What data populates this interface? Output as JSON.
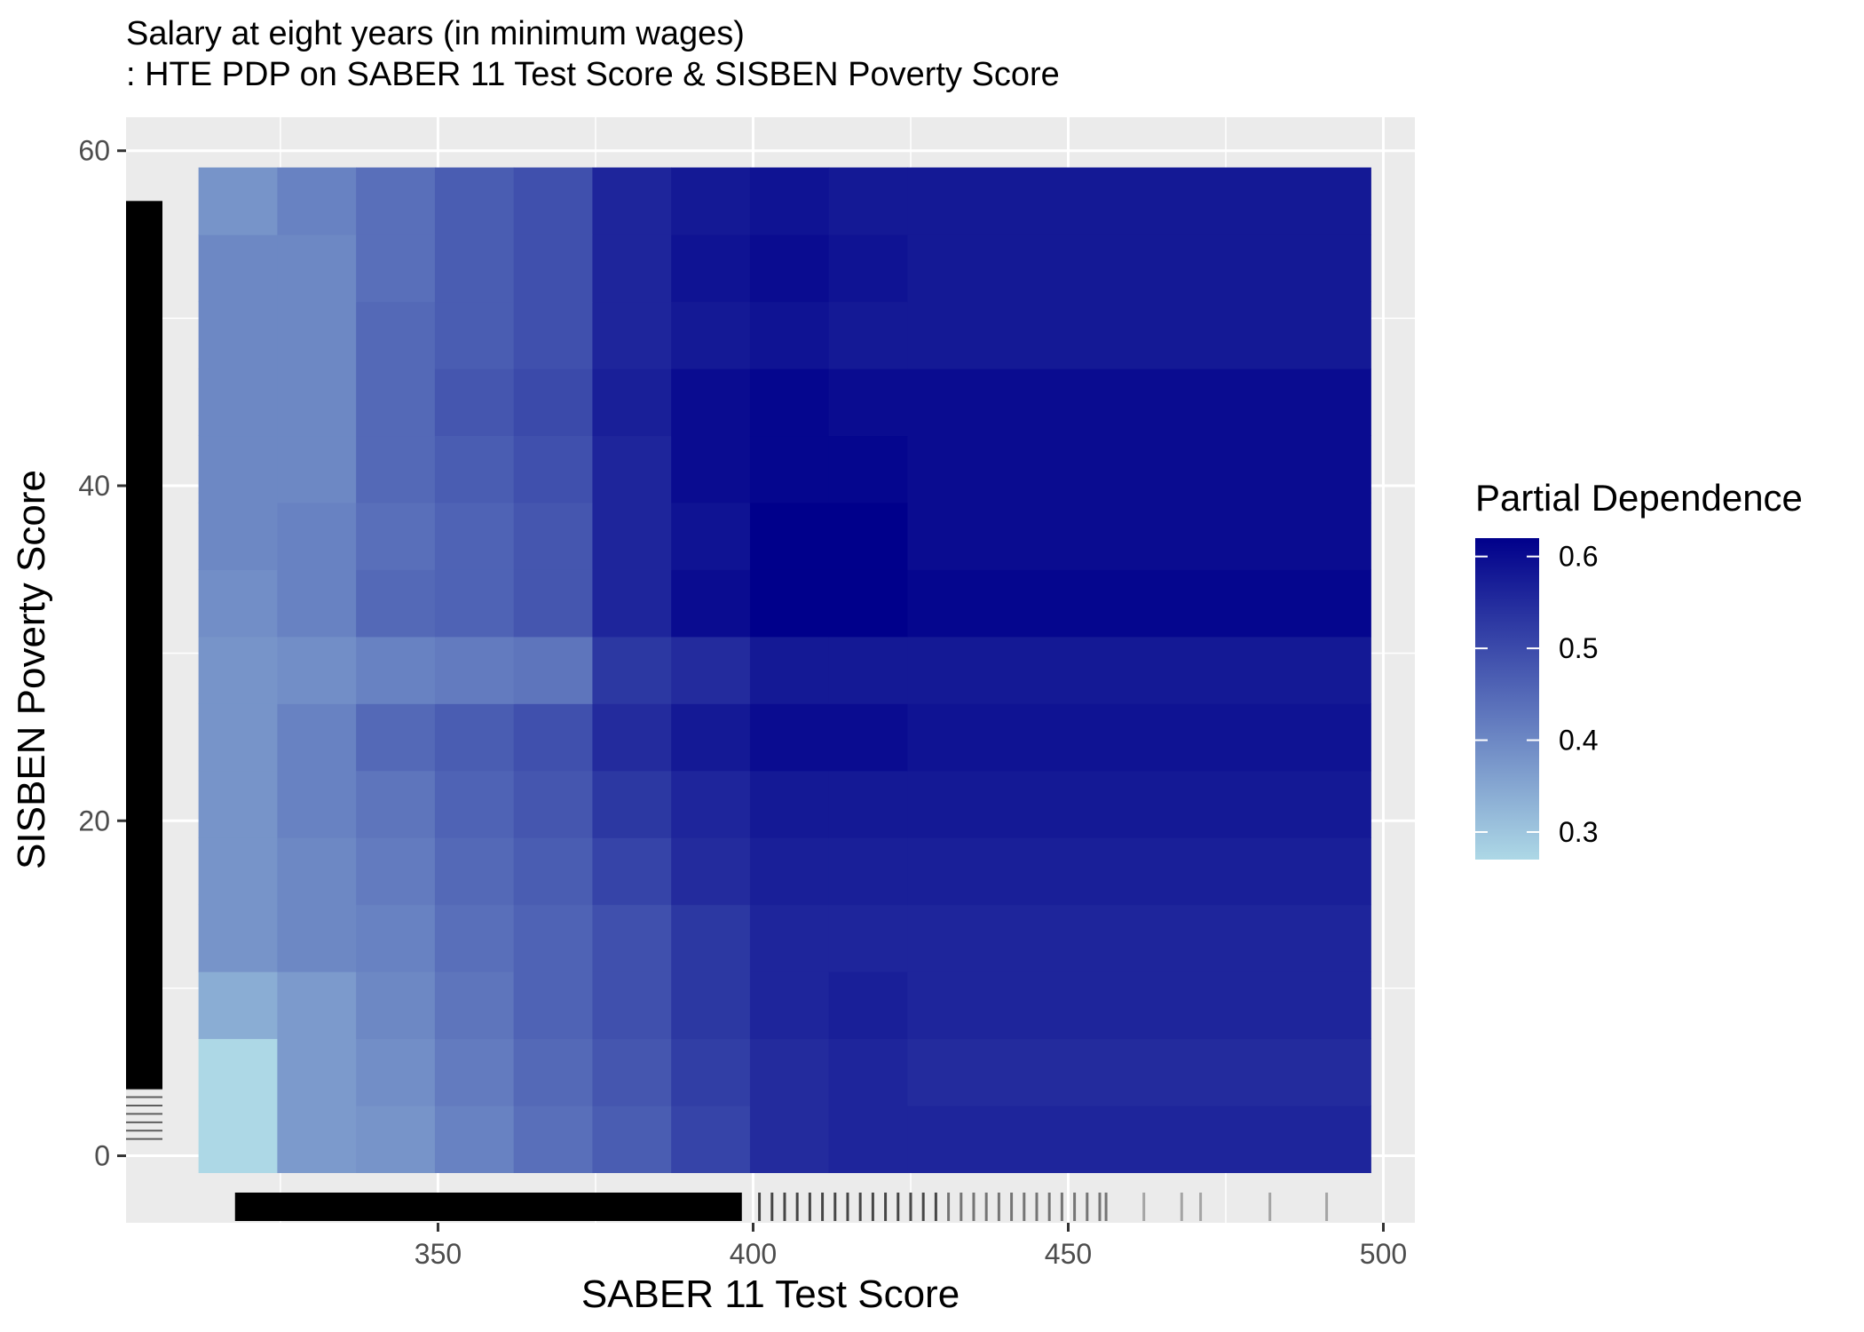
{
  "chart_data": {
    "type": "heatmap",
    "title_line1": "Salary at eight years (in minimum wages)",
    "title_line2": ": HTE PDP on SABER 11 Test Score & SISBEN Poverty Score",
    "xlabel": "SABER 11 Test Score",
    "ylabel": "SISBEN Poverty Score",
    "xlim": [
      300.5,
      505
    ],
    "ylim": [
      -4,
      62
    ],
    "x_ticks": [
      350,
      400,
      450,
      500
    ],
    "y_ticks": [
      0,
      20,
      40,
      60
    ],
    "x_tick_labels": [
      "350",
      "400",
      "450",
      "500"
    ],
    "y_tick_labels": [
      "0",
      "20",
      "40",
      "60"
    ],
    "grid": true,
    "legend": {
      "title": "Partial Dependence",
      "position": "right",
      "min": 0.27,
      "max": 0.62,
      "ticks": [
        0.3,
        0.4,
        0.5,
        0.6
      ],
      "tick_labels": [
        "0.3",
        "0.4",
        "0.5",
        "0.6"
      ],
      "low_color": "#add8e6",
      "high_color": "#00008b"
    },
    "x_bins": [
      [
        312,
        324.5
      ],
      [
        324.5,
        337
      ],
      [
        337,
        349.5
      ],
      [
        349.5,
        362
      ],
      [
        362,
        374.5
      ],
      [
        374.5,
        387
      ],
      [
        387,
        399.5
      ],
      [
        399.5,
        412
      ],
      [
        412,
        424.5
      ],
      [
        424.5,
        498
      ]
    ],
    "y_bins": [
      [
        -1,
        3
      ],
      [
        3,
        7
      ],
      [
        7,
        11
      ],
      [
        11,
        15
      ],
      [
        15,
        19
      ],
      [
        19,
        23
      ],
      [
        23,
        27
      ],
      [
        27,
        31
      ],
      [
        31,
        35
      ],
      [
        35,
        39
      ],
      [
        39,
        43
      ],
      [
        43,
        47
      ],
      [
        47,
        51
      ],
      [
        51,
        55
      ],
      [
        55,
        59
      ]
    ],
    "values": [
      [
        0.27,
        0.37,
        0.38,
        0.41,
        0.44,
        0.47,
        0.51,
        0.55,
        0.56,
        0.56
      ],
      [
        0.27,
        0.37,
        0.39,
        0.42,
        0.45,
        0.48,
        0.52,
        0.55,
        0.56,
        0.55
      ],
      [
        0.34,
        0.37,
        0.4,
        0.43,
        0.46,
        0.49,
        0.53,
        0.56,
        0.57,
        0.56
      ],
      [
        0.38,
        0.4,
        0.41,
        0.44,
        0.46,
        0.49,
        0.53,
        0.56,
        0.56,
        0.56
      ],
      [
        0.38,
        0.4,
        0.42,
        0.45,
        0.47,
        0.51,
        0.55,
        0.57,
        0.57,
        0.57
      ],
      [
        0.38,
        0.41,
        0.43,
        0.46,
        0.48,
        0.53,
        0.56,
        0.58,
        0.58,
        0.58
      ],
      [
        0.38,
        0.41,
        0.45,
        0.47,
        0.49,
        0.55,
        0.58,
        0.6,
        0.6,
        0.59
      ],
      [
        0.38,
        0.39,
        0.41,
        0.42,
        0.43,
        0.53,
        0.55,
        0.58,
        0.58,
        0.58
      ],
      [
        0.39,
        0.41,
        0.45,
        0.46,
        0.48,
        0.56,
        0.6,
        0.62,
        0.62,
        0.61
      ],
      [
        0.4,
        0.41,
        0.44,
        0.46,
        0.48,
        0.56,
        0.59,
        0.62,
        0.62,
        0.6
      ],
      [
        0.4,
        0.4,
        0.45,
        0.47,
        0.49,
        0.56,
        0.6,
        0.61,
        0.61,
        0.6
      ],
      [
        0.4,
        0.4,
        0.45,
        0.48,
        0.5,
        0.57,
        0.6,
        0.61,
        0.6,
        0.6
      ],
      [
        0.4,
        0.4,
        0.45,
        0.47,
        0.49,
        0.56,
        0.58,
        0.59,
        0.58,
        0.58
      ],
      [
        0.4,
        0.4,
        0.44,
        0.47,
        0.49,
        0.56,
        0.59,
        0.6,
        0.59,
        0.58
      ],
      [
        0.38,
        0.41,
        0.44,
        0.47,
        0.49,
        0.56,
        0.58,
        0.59,
        0.58,
        0.58
      ]
    ],
    "rug_x": [
      318,
      326,
      334,
      342,
      350,
      358,
      366,
      374,
      380,
      385,
      390,
      394,
      398,
      401,
      403,
      405,
      407,
      409,
      411,
      413,
      415,
      417,
      419,
      421,
      423,
      425,
      427,
      429,
      431,
      433,
      435,
      437,
      439,
      441,
      443,
      445,
      447,
      449,
      451,
      453,
      455,
      456,
      462,
      468,
      471,
      482,
      491
    ],
    "rug_y_min": 1,
    "rug_y_max": 57
  }
}
